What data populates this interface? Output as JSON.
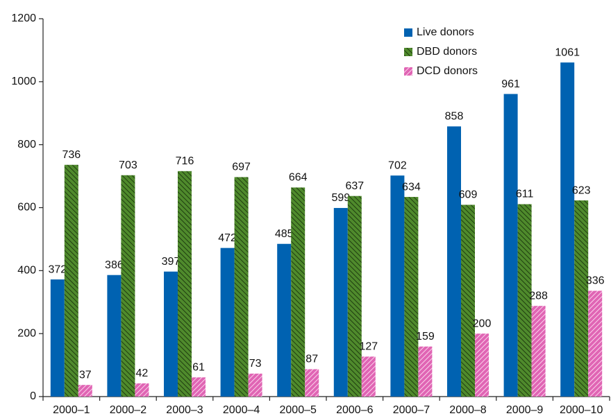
{
  "chart_data": {
    "type": "bar",
    "categories": [
      "2000–1",
      "2000–2",
      "2000–3",
      "2000–4",
      "2000–5",
      "2000–6",
      "2000–7",
      "2000–8",
      "2000–9",
      "2000–10"
    ],
    "series": [
      {
        "name": "Live donors",
        "color": "#0062b1",
        "pattern": "solid",
        "values": [
          372,
          386,
          397,
          472,
          485,
          599,
          702,
          858,
          961,
          1061
        ]
      },
      {
        "name": "DBD donors",
        "color": "#4f8a2c",
        "pattern": "hatch",
        "values": [
          736,
          703,
          716,
          697,
          664,
          637,
          634,
          609,
          611,
          623
        ]
      },
      {
        "name": "DCD donors",
        "color": "#e065b4",
        "pattern": "hatch",
        "values": [
          37,
          42,
          61,
          73,
          87,
          127,
          159,
          200,
          288,
          336
        ]
      }
    ],
    "ylim": [
      0,
      1200
    ],
    "yticks": [
      0,
      200,
      400,
      600,
      800,
      1000,
      1200
    ],
    "legend": "top-right"
  }
}
